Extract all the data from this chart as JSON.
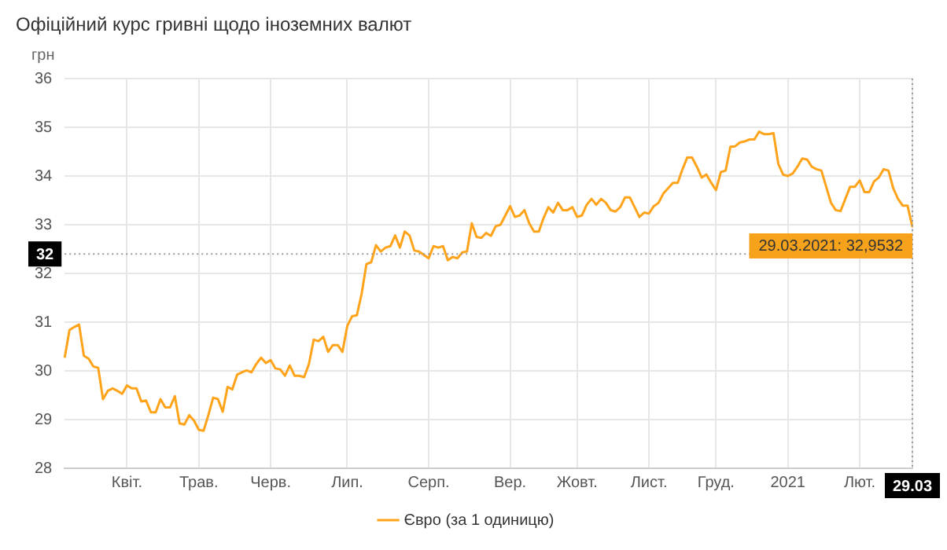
{
  "chart_data": {
    "type": "line",
    "title": "Офіційний курс гривні щодо іноземних валют",
    "ylabel": "грн",
    "categories": [
      null,
      null,
      null,
      null,
      null,
      null,
      null,
      null,
      null,
      null,
      null,
      null,
      null,
      "Квіт.",
      null,
      null,
      null,
      null,
      null,
      null,
      null,
      null,
      null,
      null,
      null,
      null,
      null,
      null,
      "Трав.",
      null,
      null,
      null,
      null,
      null,
      null,
      null,
      null,
      null,
      null,
      null,
      null,
      null,
      null,
      "Черв.",
      null,
      null,
      null,
      null,
      null,
      null,
      null,
      null,
      null,
      null,
      null,
      null,
      null,
      null,
      null,
      "Лип.",
      null,
      null,
      null,
      null,
      null,
      null,
      null,
      null,
      null,
      null,
      null,
      null,
      null,
      null,
      null,
      null,
      "Серп.",
      null,
      null,
      null,
      null,
      null,
      null,
      null,
      null,
      null,
      null,
      null,
      null,
      null,
      null,
      null,
      null,
      "Вер.",
      null,
      null,
      null,
      null,
      null,
      null,
      null,
      null,
      null,
      null,
      null,
      null,
      null,
      "Жовт.",
      null,
      null,
      null,
      null,
      null,
      null,
      null,
      null,
      null,
      null,
      null,
      null,
      null,
      null,
      "Лист.",
      null,
      null,
      null,
      null,
      null,
      null,
      null,
      null,
      null,
      null,
      null,
      null,
      null,
      "Груд.",
      null,
      null,
      null,
      null,
      null,
      null,
      null,
      null,
      null,
      null,
      null,
      null,
      null,
      null,
      "2021",
      null,
      null,
      null,
      null,
      null,
      null,
      null,
      null,
      null,
      null,
      null,
      null,
      null,
      null,
      "Лют.",
      null,
      null,
      null,
      null,
      null,
      null,
      null,
      null,
      null,
      null,
      "29.03"
    ],
    "series": [
      {
        "name": "Євро (за 1 одиницю)",
        "color": "#ffa31a",
        "values": [
          30.27,
          30.84,
          30.9,
          30.95,
          30.31,
          30.25,
          30.09,
          30.06,
          29.42,
          29.59,
          29.64,
          29.59,
          29.53,
          29.7,
          29.64,
          29.64,
          29.37,
          29.39,
          29.15,
          29.15,
          29.42,
          29.25,
          29.25,
          29.48,
          28.92,
          28.9,
          29.09,
          28.98,
          28.79,
          28.77,
          29.09,
          29.45,
          29.42,
          29.16,
          29.67,
          29.62,
          29.92,
          29.97,
          30.01,
          29.97,
          30.14,
          30.27,
          30.16,
          30.22,
          30.05,
          30.03,
          29.9,
          30.11,
          29.9,
          29.9,
          29.87,
          30.14,
          30.64,
          30.61,
          30.7,
          30.39,
          30.53,
          30.53,
          30.39,
          30.92,
          31.12,
          31.14,
          31.58,
          32.19,
          32.23,
          32.58,
          32.45,
          32.53,
          32.56,
          32.78,
          32.53,
          32.86,
          32.78,
          32.47,
          32.45,
          32.38,
          32.31,
          32.56,
          32.53,
          32.56,
          32.27,
          32.34,
          32.31,
          32.43,
          32.45,
          33.03,
          32.75,
          32.73,
          32.83,
          32.77,
          32.97,
          33.0,
          33.19,
          33.38,
          33.16,
          33.19,
          33.3,
          33.03,
          32.86,
          32.86,
          33.14,
          33.36,
          33.25,
          33.45,
          33.3,
          33.3,
          33.36,
          33.16,
          33.19,
          33.41,
          33.53,
          33.41,
          33.53,
          33.45,
          33.3,
          33.27,
          33.36,
          33.56,
          33.56,
          33.36,
          33.16,
          33.25,
          33.23,
          33.38,
          33.45,
          33.64,
          33.75,
          33.86,
          33.86,
          34.14,
          34.38,
          34.38,
          34.19,
          33.97,
          34.03,
          33.86,
          33.71,
          34.08,
          34.11,
          34.6,
          34.61,
          34.69,
          34.71,
          34.75,
          34.75,
          34.91,
          34.86,
          34.86,
          34.88,
          34.25,
          34.03,
          34.0,
          34.05,
          34.19,
          34.36,
          34.34,
          34.19,
          34.14,
          34.11,
          33.78,
          33.45,
          33.3,
          33.28,
          33.53,
          33.78,
          33.78,
          33.91,
          33.67,
          33.67,
          33.89,
          33.97,
          34.14,
          34.11,
          33.75,
          33.53,
          33.39,
          33.39,
          32.9532
        ]
      }
    ],
    "ylim": [
      28,
      36
    ],
    "yticks": [
      28,
      29,
      30,
      31,
      32,
      33,
      34,
      35,
      36
    ],
    "grid": true,
    "legend": "bottom",
    "ref_lines": [
      {
        "axis": "y",
        "value": 32.4,
        "label": "32",
        "line_style": "dotted"
      },
      {
        "axis": "x",
        "value": "29.03",
        "line_style": "dotted"
      }
    ],
    "annotations": [
      {
        "text": "29.03.2021: 32,9532",
        "x": "29.03",
        "y": 32.9532
      }
    ]
  }
}
